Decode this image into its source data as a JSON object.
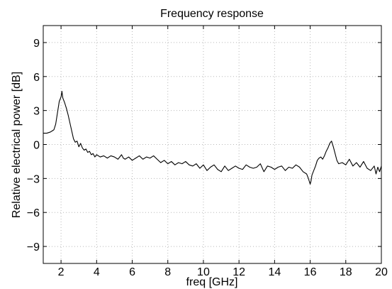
{
  "chart_data": {
    "type": "line",
    "title": "Frequency response",
    "xlabel": "freq [GHz]",
    "ylabel": "Relative electrical power [dB]",
    "xlim": [
      1,
      20
    ],
    "ylim": [
      -10.5,
      10.5
    ],
    "xticks": [
      2,
      4,
      6,
      8,
      10,
      12,
      14,
      16,
      18,
      20
    ],
    "yticks": [
      -9,
      -6,
      -3,
      0,
      3,
      6,
      9
    ],
    "ytick_labels": [
      "−9",
      "−6",
      "−3",
      "0",
      "3",
      "6",
      "9"
    ],
    "grid": true,
    "series": [
      {
        "color": "#000000",
        "x": [
          1.0,
          1.2,
          1.4,
          1.5,
          1.6,
          1.7,
          1.8,
          1.9,
          2.0,
          2.05,
          2.1,
          2.2,
          2.3,
          2.4,
          2.5,
          2.6,
          2.7,
          2.8,
          2.9,
          3.0,
          3.1,
          3.2,
          3.3,
          3.4,
          3.5,
          3.6,
          3.7,
          3.8,
          3.9,
          4.0,
          4.2,
          4.4,
          4.6,
          4.8,
          5.0,
          5.2,
          5.4,
          5.5,
          5.6,
          5.8,
          6.0,
          6.2,
          6.4,
          6.6,
          6.8,
          7.0,
          7.2,
          7.4,
          7.6,
          7.8,
          8.0,
          8.2,
          8.4,
          8.6,
          8.8,
          9.0,
          9.2,
          9.4,
          9.6,
          9.8,
          10.0,
          10.2,
          10.4,
          10.6,
          10.8,
          11.0,
          11.2,
          11.4,
          11.6,
          11.8,
          12.0,
          12.2,
          12.4,
          12.6,
          12.8,
          13.0,
          13.2,
          13.4,
          13.6,
          13.8,
          14.0,
          14.2,
          14.4,
          14.6,
          14.8,
          15.0,
          15.2,
          15.4,
          15.6,
          15.8,
          15.9,
          16.0,
          16.05,
          16.1,
          16.2,
          16.3,
          16.4,
          16.5,
          16.6,
          16.7,
          16.8,
          16.9,
          17.0,
          17.1,
          17.2,
          17.3,
          17.4,
          17.5,
          17.6,
          17.8,
          18.0,
          18.2,
          18.4,
          18.6,
          18.8,
          19.0,
          19.2,
          19.4,
          19.6,
          19.7,
          19.8,
          19.9,
          20.0
        ],
        "y": [
          1.0,
          1.0,
          1.1,
          1.2,
          1.3,
          1.8,
          2.8,
          3.8,
          4.2,
          4.7,
          4.1,
          3.7,
          3.2,
          2.6,
          1.9,
          1.2,
          0.5,
          0.2,
          0.3,
          -0.2,
          0.1,
          -0.3,
          -0.5,
          -0.4,
          -0.7,
          -0.6,
          -0.9,
          -0.8,
          -1.1,
          -0.9,
          -1.1,
          -1.0,
          -1.2,
          -1.0,
          -1.1,
          -1.3,
          -0.9,
          -1.2,
          -1.3,
          -1.1,
          -1.4,
          -1.2,
          -1.0,
          -1.3,
          -1.1,
          -1.2,
          -1.0,
          -1.3,
          -1.6,
          -1.4,
          -1.7,
          -1.5,
          -1.8,
          -1.6,
          -1.7,
          -1.5,
          -1.8,
          -1.9,
          -1.7,
          -2.1,
          -1.8,
          -2.3,
          -2.0,
          -1.8,
          -2.2,
          -2.4,
          -1.9,
          -2.3,
          -2.1,
          -1.9,
          -2.1,
          -2.2,
          -1.8,
          -2.0,
          -2.1,
          -2.0,
          -1.7,
          -2.4,
          -1.9,
          -2.0,
          -2.2,
          -2.0,
          -1.9,
          -2.3,
          -2.0,
          -2.1,
          -1.8,
          -2.0,
          -2.4,
          -2.6,
          -3.0,
          -3.5,
          -3.2,
          -2.7,
          -2.3,
          -1.9,
          -1.4,
          -1.2,
          -1.1,
          -1.3,
          -1.0,
          -0.6,
          -0.3,
          0.1,
          0.3,
          -0.2,
          -0.8,
          -1.4,
          -1.7,
          -1.6,
          -1.8,
          -1.3,
          -1.9,
          -1.6,
          -2.0,
          -1.5,
          -2.1,
          -2.3,
          -1.9,
          -2.6,
          -2.0,
          -2.4,
          -1.9
        ]
      }
    ]
  }
}
